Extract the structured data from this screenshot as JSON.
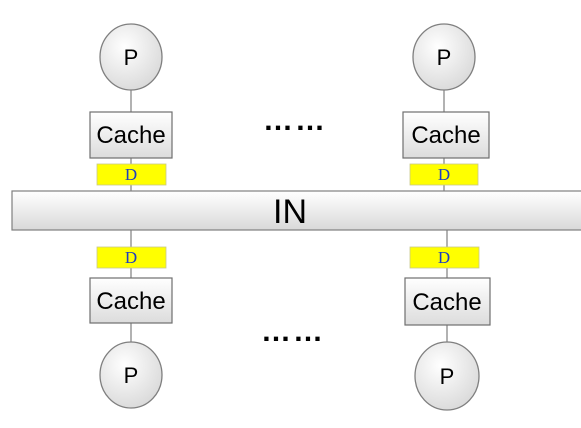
{
  "interconnect": {
    "label": "IN"
  },
  "ellipsis": "……",
  "top_row": [
    {
      "processor": "P",
      "cache": "Cache",
      "directory": "D"
    },
    {
      "processor": "P",
      "cache": "Cache",
      "directory": "D"
    }
  ],
  "bottom_row": [
    {
      "processor": "P",
      "cache": "Cache",
      "directory": "D"
    },
    {
      "processor": "P",
      "cache": "Cache",
      "directory": "D"
    }
  ],
  "colors": {
    "directory_fill": "#ffff00",
    "processor_fill": "#f2f2f2",
    "bus_fill": "#f2f2f2",
    "stroke": "#7f7f7f",
    "directory_text": "#1f3fbf"
  }
}
